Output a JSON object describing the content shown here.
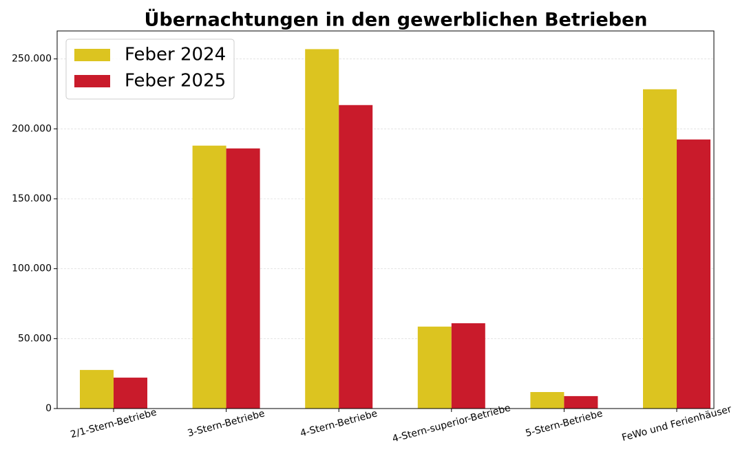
{
  "chart_data": {
    "type": "bar",
    "title": "Übernachtungen in den gewerblichen Betrieben",
    "categories": [
      "2/1-Stern-Betriebe",
      "3-Stern-Betriebe",
      "4-Stern-Betriebe",
      "4-Stern-superior-Betriebe",
      "5-Stern-Betriebe",
      "FeWo und Ferienhäuser"
    ],
    "series": [
      {
        "name": "Feber 2024",
        "color": "#dcc420",
        "values": [
          27600,
          188000,
          257000,
          58600,
          11800,
          228300
        ]
      },
      {
        "name": "Feber 2025",
        "color": "#c91b2b",
        "values": [
          22100,
          186000,
          217000,
          61000,
          8900,
          192400
        ]
      }
    ],
    "ylim": [
      0,
      270000
    ],
    "yticks": [
      0,
      {
        "value": 50000,
        "label": "50.000"
      },
      {
        "value": 100000,
        "label": "100.000"
      },
      {
        "value": 150000,
        "label": "150.000"
      },
      {
        "value": 200000,
        "label": "200.000"
      },
      {
        "value": 250000,
        "label": "250.000"
      }
    ],
    "grid": true,
    "legend": "upper left"
  }
}
